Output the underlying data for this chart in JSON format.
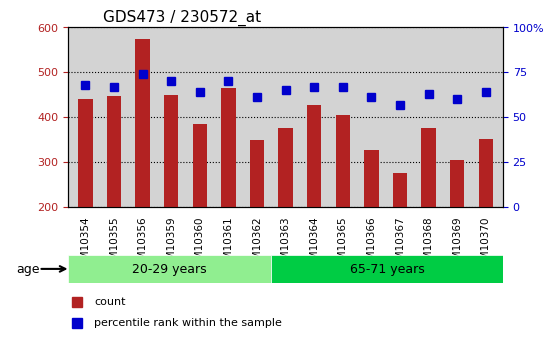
{
  "title": "GDS473 / 230572_at",
  "categories": [
    "GSM10354",
    "GSM10355",
    "GSM10356",
    "GSM10359",
    "GSM10360",
    "GSM10361",
    "GSM10362",
    "GSM10363",
    "GSM10364",
    "GSM10365",
    "GSM10366",
    "GSM10367",
    "GSM10368",
    "GSM10369",
    "GSM10370"
  ],
  "counts": [
    440,
    448,
    575,
    450,
    385,
    465,
    350,
    375,
    428,
    404,
    326,
    276,
    376,
    305,
    352
  ],
  "percentiles": [
    68,
    67,
    74,
    70,
    64,
    70,
    61,
    65,
    67,
    67,
    61,
    57,
    63,
    60,
    64
  ],
  "group1_label": "20-29 years",
  "group2_label": "65-71 years",
  "group1_count": 7,
  "group2_count": 8,
  "ylim_left": [
    200,
    600
  ],
  "ylim_right": [
    0,
    100
  ],
  "yticks_left": [
    200,
    300,
    400,
    500,
    600
  ],
  "yticks_right": [
    0,
    25,
    50,
    75,
    100
  ],
  "yticklabels_right": [
    "0",
    "25",
    "50",
    "75",
    "100%"
  ],
  "bar_color": "#B22222",
  "dot_color": "#0000CC",
  "bg_color": "#D3D3D3",
  "group1_bg": "#90EE90",
  "group2_bg": "#00CC44",
  "legend_count_label": "count",
  "legend_pct_label": "percentile rank within the sample",
  "age_label": "age"
}
